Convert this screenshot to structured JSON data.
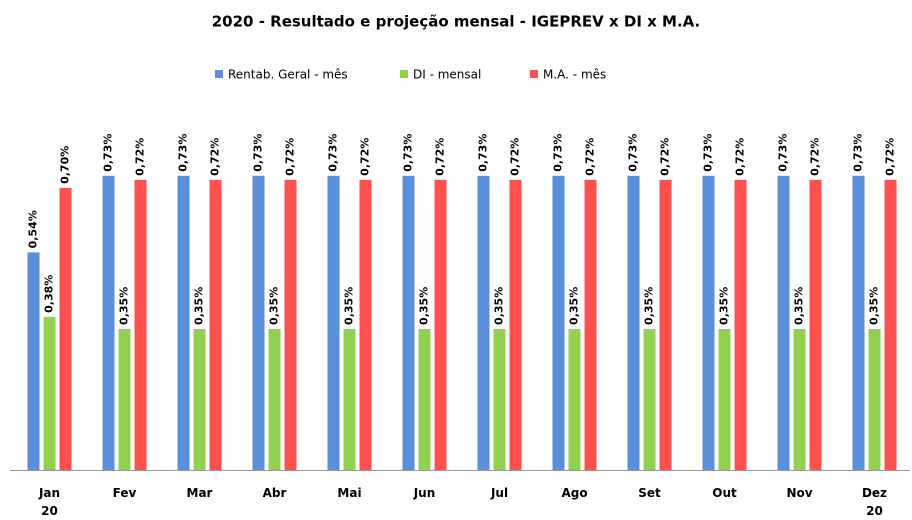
{
  "chart_data": {
    "type": "bar",
    "title": "2020 - Resultado e projeção mensal - IGEPREV x DI x M.A.",
    "categories": [
      "Jan 20",
      "Fev",
      "Mar",
      "Abr",
      "Mai",
      "Jun",
      "Jul",
      "Ago",
      "Set",
      "Out",
      "Nov",
      "Dez 20"
    ],
    "series": [
      {
        "name": "Rentab. Geral - mês",
        "color": "#5b8fd9",
        "values": [
          0.54,
          0.73,
          0.73,
          0.73,
          0.73,
          0.73,
          0.73,
          0.73,
          0.73,
          0.73,
          0.73,
          0.73
        ],
        "value_labels": [
          "0,54%",
          "0,73%",
          "0,73%",
          "0,73%",
          "0,73%",
          "0,73%",
          "0,73%",
          "0,73%",
          "0,73%",
          "0,73%",
          "0,73%",
          "0,73%"
        ]
      },
      {
        "name": "DI - mensal",
        "color": "#92d050",
        "values": [
          0.38,
          0.35,
          0.35,
          0.35,
          0.35,
          0.35,
          0.35,
          0.35,
          0.35,
          0.35,
          0.35,
          0.35
        ],
        "value_labels": [
          "0,38%",
          "0,35%",
          "0,35%",
          "0,35%",
          "0,35%",
          "0,35%",
          "0,35%",
          "0,35%",
          "0,35%",
          "0,35%",
          "0,35%",
          "0,35%"
        ]
      },
      {
        "name": "M.A. - mês",
        "color": "#ff5050",
        "values": [
          0.7,
          0.72,
          0.72,
          0.72,
          0.72,
          0.72,
          0.72,
          0.72,
          0.72,
          0.72,
          0.72,
          0.72
        ],
        "value_labels": [
          "0,70%",
          "0,72%",
          "0,72%",
          "0,72%",
          "0,72%",
          "0,72%",
          "0,72%",
          "0,72%",
          "0,72%",
          "0,72%",
          "0,72%",
          "0,72%"
        ]
      }
    ],
    "legend": "top"
  }
}
